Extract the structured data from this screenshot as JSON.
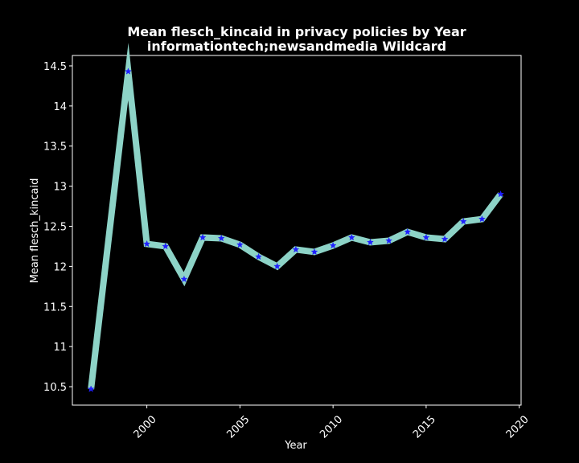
{
  "chart_data": {
    "type": "line",
    "title_lines": [
      "Mean flesch_kincaid in privacy policies by Year",
      "informationtech;newsandmedia Wildcard"
    ],
    "xlabel": "Year",
    "ylabel": "Mean flesch_kincaid",
    "xlim": [
      1996,
      2020.1
    ],
    "ylim": [
      10.27,
      14.63
    ],
    "x_ticks": [
      2000,
      2005,
      2010,
      2015,
      2020
    ],
    "y_ticks": [
      10.5,
      11.0,
      11.5,
      12.0,
      12.5,
      13.0,
      13.5,
      14.0,
      14.5
    ],
    "x_tick_rotation": 45,
    "grid": false,
    "colors": {
      "background": "#000000",
      "line": "#8dd3c7",
      "marker": "#1f1fff",
      "text": "#ffffff",
      "axes": "#ffffff"
    },
    "series": [
      {
        "x": [
          1997,
          1999,
          2000,
          2001,
          2002,
          2003,
          2004,
          2005,
          2006,
          2007,
          2008,
          2009,
          2010,
          2011,
          2012,
          2013,
          2014,
          2015,
          2016,
          2017,
          2018,
          2019
        ],
        "values": [
          10.47,
          14.43,
          12.28,
          12.25,
          11.84,
          12.36,
          12.35,
          12.27,
          12.12,
          12.0,
          12.21,
          12.18,
          12.26,
          12.36,
          12.3,
          12.32,
          12.43,
          12.36,
          12.34,
          12.56,
          12.59,
          12.9
        ]
      }
    ]
  }
}
